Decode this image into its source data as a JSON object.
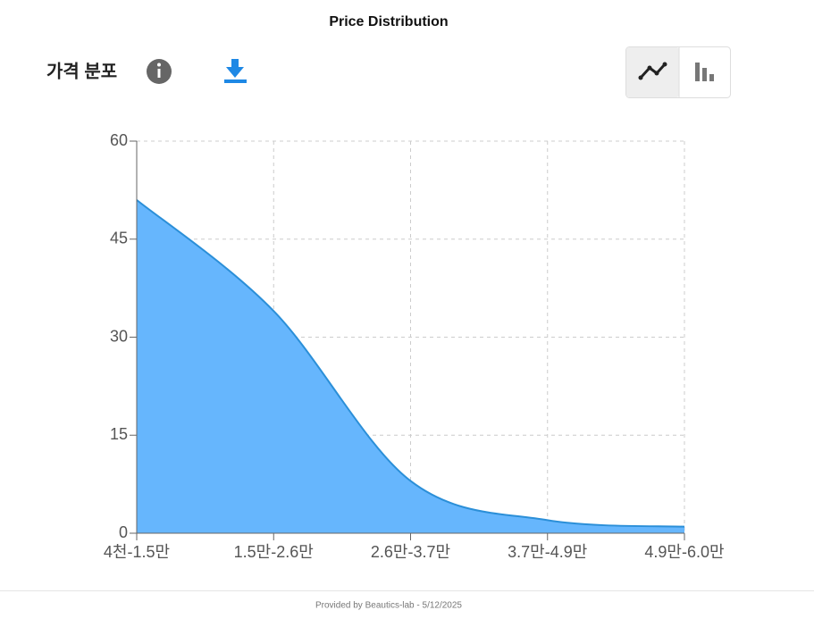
{
  "title": "Price Distribution",
  "section_title": "가격 분포",
  "footer": "Provided by Beautics-lab - 5/12/2025",
  "chart_data": {
    "type": "area",
    "categories": [
      "4천-1.5만",
      "1.5만-2.6만",
      "2.6만-3.7만",
      "3.7만-4.9만",
      "4.9만-6.0만"
    ],
    "values": [
      51,
      34,
      8,
      2,
      1
    ],
    "color": "#66b6fd",
    "line_color": "#2b8fd8",
    "ylim": [
      0,
      60
    ],
    "yticks": [
      0,
      15,
      30,
      45,
      60
    ],
    "grid": true,
    "smooth": true
  }
}
